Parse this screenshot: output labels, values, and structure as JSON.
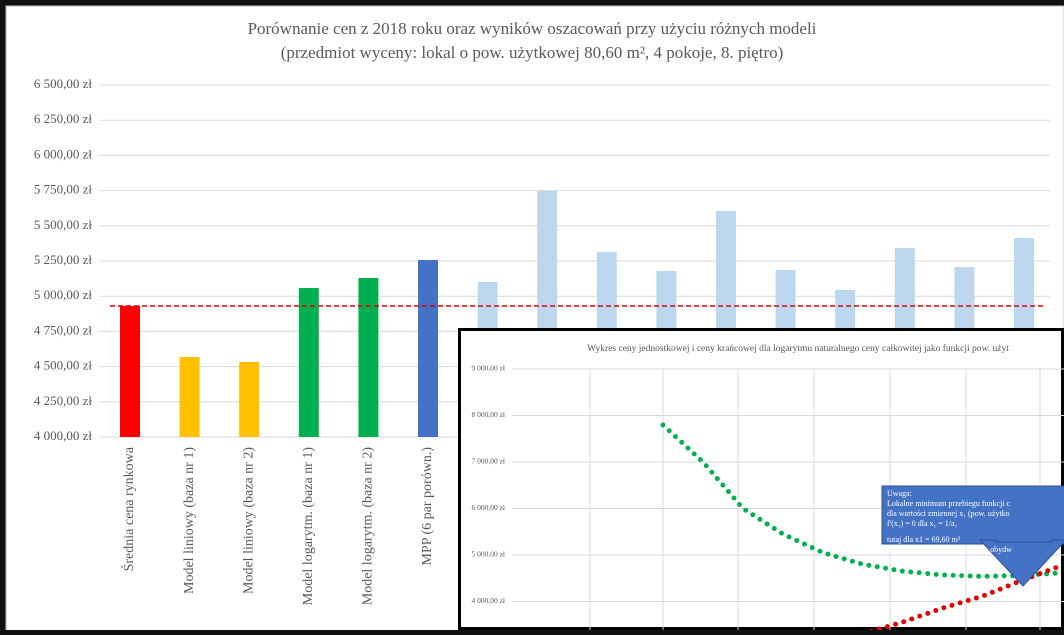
{
  "chart_data": [
    {
      "type": "bar",
      "title": "Porównanie cen z 2018 roku oraz wyników oszacowań przy użyciu różnych modeli",
      "subtitle": "(przedmiot wyceny: lokal o pow. użytkowej 80,60 m², 4 pokoje, 8. piętro)",
      "categories": [
        "Średnia cena rynkowa",
        "Model liniowy (baza nr 1)",
        "Model liniowy (baza nr 2)",
        "Model logarytm. (baza nr 1)",
        "Model logarytm. (baza nr 2)",
        "MPP (6 par porówn.)",
        null,
        null,
        null,
        null,
        null,
        null,
        null,
        null,
        null,
        null
      ],
      "values": [
        4930,
        4568,
        4533,
        5058,
        5129,
        5257,
        5101,
        5747,
        5314,
        5179,
        5605,
        5186,
        5044,
        5342,
        5207,
        5413
      ],
      "colors": [
        "#ff0000",
        "#ffc000",
        "#ffc000",
        "#00b050",
        "#00b050",
        "#4472c4",
        "#bdd7ee",
        "#bdd7ee",
        "#bdd7ee",
        "#bdd7ee",
        "#bdd7ee",
        "#bdd7ee",
        "#bdd7ee",
        "#bdd7ee",
        "#bdd7ee",
        "#bdd7ee"
      ],
      "ylim": [
        4000,
        6500
      ],
      "yticks": [
        {
          "value": 4000,
          "label": "4 000,00 zł"
        },
        {
          "value": 4250,
          "label": "4 250,00 zł"
        },
        {
          "value": 4500,
          "label": "4 500,00 zł"
        },
        {
          "value": 4750,
          "label": "4 750,00 zł"
        },
        {
          "value": 5000,
          "label": "5 000,00 zł"
        },
        {
          "value": 5250,
          "label": "5 250,00 zł"
        },
        {
          "value": 5500,
          "label": "5 500,00 zł"
        },
        {
          "value": 5750,
          "label": "5 750,00 zł"
        },
        {
          "value": 6000,
          "label": "6 000,00 zł"
        },
        {
          "value": 6250,
          "label": "6 250,00 zł"
        },
        {
          "value": 6500,
          "label": "6 500,00 zł"
        }
      ],
      "grid": true,
      "average_line_color": "#e00000"
    },
    {
      "type": "line",
      "title": "Wykres ceny jednostkowej i ceny krańcowej dla logarytmu naturalnego ceny całkowitej jako funkcji pow. użyt",
      "categories": [
        null,
        null,
        null,
        null,
        null,
        null,
        null,
        null,
        null,
        null,
        null
      ],
      "series": [
        {
          "color": "#00b050",
          "values": [
            7796,
            7000,
            6000,
            5450,
            5050,
            4800,
            4650,
            4570,
            4540,
            4560,
            4620
          ]
        },
        {
          "color": "#e00000",
          "values": [
            null,
            null,
            null,
            null,
            null,
            3301,
            3559,
            3860,
            4118,
            4462,
            4785
          ]
        }
      ],
      "ylim": [
        3000,
        9000
      ],
      "yticks": [
        {
          "value": 4000,
          "label": "4 000,00 zł"
        },
        {
          "value": 5000,
          "label": "5 000,00 zł"
        },
        {
          "value": 6000,
          "label": "6 000,00 zł"
        },
        {
          "value": 7000,
          "label": "7 000,00 zł"
        },
        {
          "value": 8000,
          "label": "8 000,00 zł"
        },
        {
          "value": 9000,
          "label": "9 000,00 zł"
        }
      ],
      "grid": true,
      "annotation": [
        "Uwaga:",
        "Lokalne minimum przebiegu funkcji c",
        "dla wartości zmiennej x₁ (pow. użytko",
        "f'(x₁) = 0  dla x₁ = 1/a₁",
        "tutaj dla x1 = 69,60 m²",
        "dokładnie w punkcie przecięcia obydw"
      ]
    }
  ]
}
